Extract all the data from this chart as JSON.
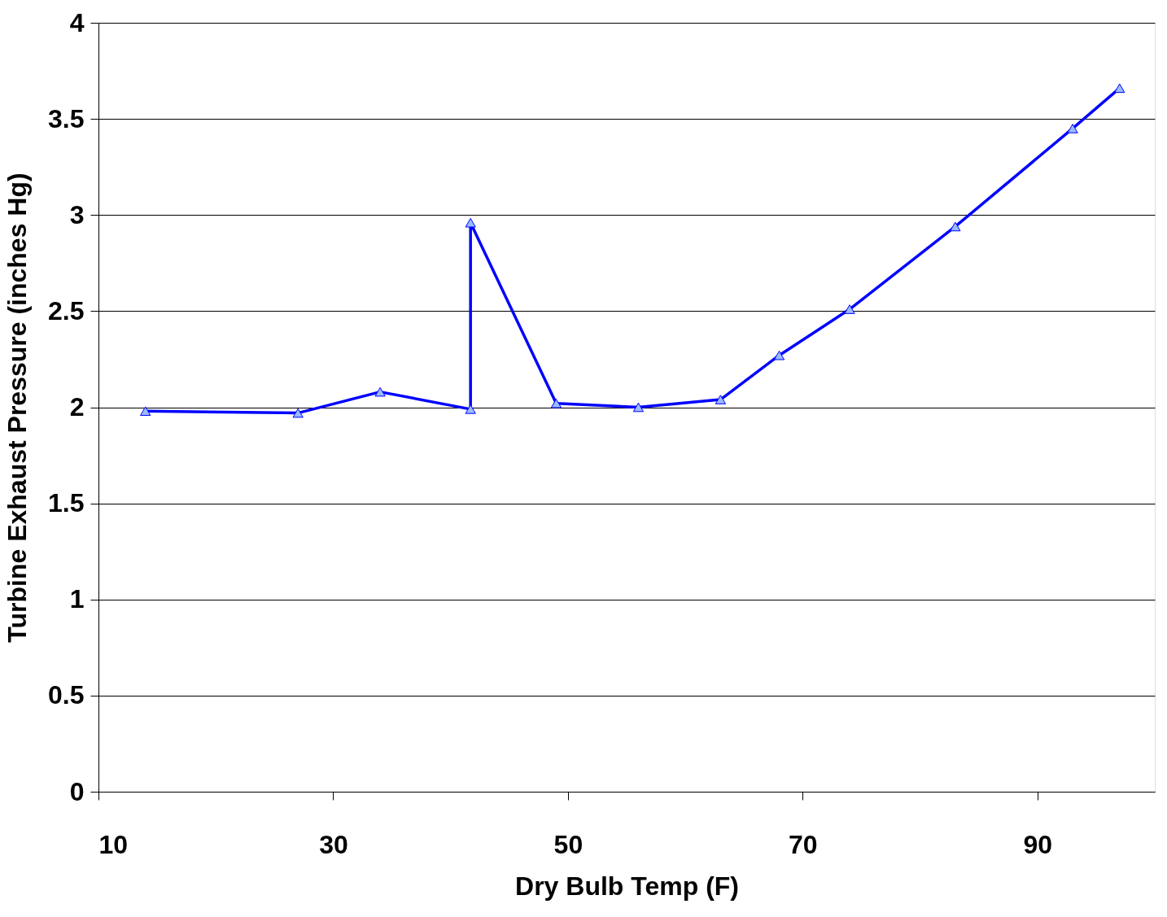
{
  "chart_data": {
    "type": "line",
    "xlabel": "Dry Bulb Temp (F)",
    "ylabel": "Turbine Exhaust Pressure (inches Hg)",
    "series": [
      {
        "color": "#0000ff",
        "x": [
          14,
          27,
          34,
          41.7,
          41.7,
          49,
          56,
          63,
          68,
          74,
          83,
          93,
          97
        ],
        "values": [
          1.98,
          1.97,
          2.08,
          1.99,
          2.96,
          2.02,
          2.0,
          2.04,
          2.27,
          2.51,
          2.94,
          3.45,
          3.66
        ]
      }
    ],
    "xlim": [
      10,
      100
    ],
    "xticks": [
      10,
      30,
      50,
      70,
      90
    ],
    "ylim": [
      0,
      4
    ],
    "yticks": [
      0,
      0.5,
      1,
      1.5,
      2,
      2.5,
      3,
      3.5,
      4
    ],
    "grid": "y",
    "marker": "triangle",
    "line_style": "solid"
  }
}
